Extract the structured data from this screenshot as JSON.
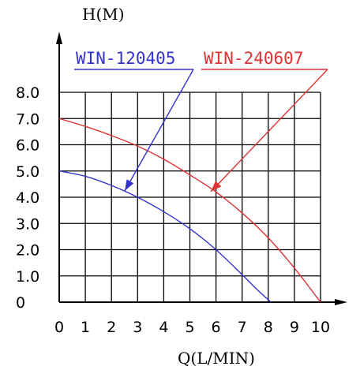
{
  "chart_data": {
    "type": "line",
    "xlabel": "Q(L/MIN)",
    "ylabel": "H(M)",
    "xlim": [
      0,
      10
    ],
    "ylim": [
      0,
      8
    ],
    "x_ticks": [
      "0",
      "1",
      "2",
      "3",
      "4",
      "5",
      "6",
      "7",
      "8",
      "9",
      "10"
    ],
    "y_ticks": [
      "0",
      "1.0",
      "2.0",
      "3.0",
      "4.0",
      "5.0",
      "6.0",
      "7.0",
      "8.0"
    ],
    "grid": true,
    "series": [
      {
        "name": "WIN-120405",
        "color": "#3333cc",
        "x": [
          0,
          1,
          2,
          3,
          4,
          5,
          6,
          7,
          7.5,
          8.1
        ],
        "y": [
          5.0,
          4.8,
          4.45,
          4.0,
          3.45,
          2.8,
          2.0,
          1.05,
          0.55,
          0
        ]
      },
      {
        "name": "WIN-240607",
        "color": "#dd3333",
        "x": [
          0,
          1,
          2,
          3,
          4,
          5,
          6,
          7,
          8,
          9,
          10
        ],
        "y": [
          7.0,
          6.7,
          6.35,
          5.95,
          5.45,
          4.85,
          4.2,
          3.4,
          2.45,
          1.3,
          0
        ]
      }
    ]
  }
}
